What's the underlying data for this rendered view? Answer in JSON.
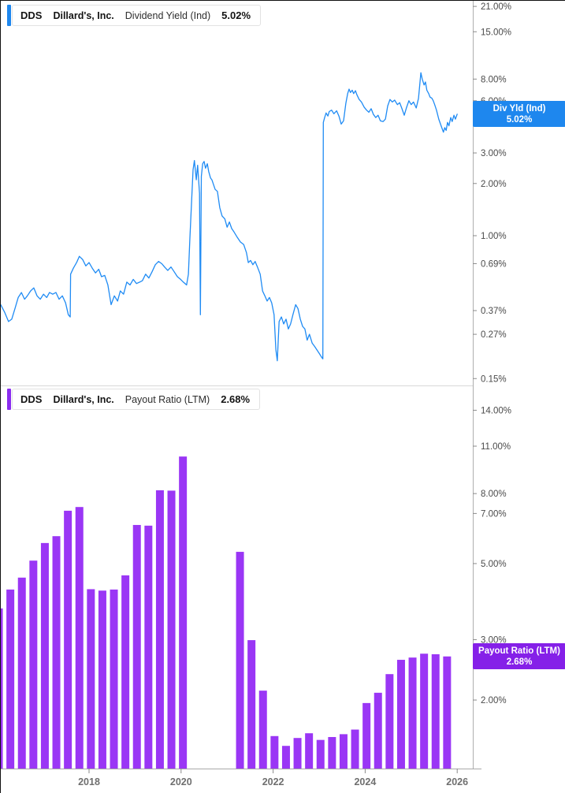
{
  "ui": {
    "colors": {
      "line_blue": "#1f8bf4",
      "bar_purple": "#9a36f5",
      "badge_blue": "#1e87ee",
      "badge_purple": "#8520e8",
      "accent_blue": "#1e87ee",
      "accent_purple": "#8b2df0"
    },
    "chips": [
      {
        "ticker": "DDS",
        "company": "Dillard's, Inc.",
        "metric": "Dividend Yield (Ind)",
        "value": "5.02%",
        "color": "#1e87ee"
      },
      {
        "ticker": "DDS",
        "company": "Dillard's, Inc.",
        "metric": "Payout Ratio (LTM)",
        "value": "2.68%",
        "color": "#8b2df0"
      }
    ],
    "badges": [
      {
        "label": "Div Yld (Ind)",
        "value": "5.02%",
        "color": "#1e87ee"
      },
      {
        "label": "Payout Ratio (LTM)",
        "value": "2.68%",
        "color": "#8520e8"
      }
    ]
  },
  "x_axis": {
    "ticks": [
      2018,
      2020,
      2022,
      2024,
      2026
    ]
  },
  "chart_data": [
    {
      "type": "line",
      "title": "DDS Dillard's, Inc. Dividend Yield (Ind)",
      "series_name": "Div Yld (Ind)",
      "unit": "%",
      "y_scale": "log",
      "last_value": 5.02,
      "y_ticks": [
        21,
        15,
        8,
        6,
        3,
        2,
        1,
        0.69,
        0.37,
        0.27,
        0.15
      ],
      "x_range": [
        2016.08,
        2026.34
      ],
      "legend_position": "top-left",
      "grid": false,
      "points": [
        [
          2016.08,
          0.4
        ],
        [
          2016.17,
          0.36
        ],
        [
          2016.25,
          0.32
        ],
        [
          2016.32,
          0.33
        ],
        [
          2016.39,
          0.38
        ],
        [
          2016.46,
          0.44
        ],
        [
          2016.53,
          0.47
        ],
        [
          2016.6,
          0.43
        ],
        [
          2016.66,
          0.45
        ],
        [
          2016.73,
          0.48
        ],
        [
          2016.8,
          0.5
        ],
        [
          2016.87,
          0.45
        ],
        [
          2016.94,
          0.43
        ],
        [
          2017.01,
          0.46
        ],
        [
          2017.08,
          0.44
        ],
        [
          2017.14,
          0.47
        ],
        [
          2017.21,
          0.46
        ],
        [
          2017.28,
          0.47
        ],
        [
          2017.35,
          0.43
        ],
        [
          2017.42,
          0.45
        ],
        [
          2017.49,
          0.41
        ],
        [
          2017.55,
          0.35
        ],
        [
          2017.59,
          0.34
        ],
        [
          2017.6,
          0.6
        ],
        [
          2017.66,
          0.65
        ],
        [
          2017.73,
          0.7
        ],
        [
          2017.79,
          0.76
        ],
        [
          2017.86,
          0.73
        ],
        [
          2017.93,
          0.67
        ],
        [
          2018.0,
          0.7
        ],
        [
          2018.07,
          0.65
        ],
        [
          2018.14,
          0.61
        ],
        [
          2018.21,
          0.64
        ],
        [
          2018.27,
          0.58
        ],
        [
          2018.34,
          0.59
        ],
        [
          2018.41,
          0.52
        ],
        [
          2018.48,
          0.4
        ],
        [
          2018.55,
          0.45
        ],
        [
          2018.62,
          0.42
        ],
        [
          2018.68,
          0.48
        ],
        [
          2018.75,
          0.46
        ],
        [
          2018.82,
          0.54
        ],
        [
          2018.89,
          0.52
        ],
        [
          2018.96,
          0.56
        ],
        [
          2019.03,
          0.53
        ],
        [
          2019.1,
          0.54
        ],
        [
          2019.16,
          0.55
        ],
        [
          2019.23,
          0.6
        ],
        [
          2019.3,
          0.57
        ],
        [
          2019.37,
          0.62
        ],
        [
          2019.44,
          0.68
        ],
        [
          2019.51,
          0.71
        ],
        [
          2019.58,
          0.69
        ],
        [
          2019.64,
          0.66
        ],
        [
          2019.71,
          0.63
        ],
        [
          2019.78,
          0.66
        ],
        [
          2019.85,
          0.62
        ],
        [
          2019.92,
          0.58
        ],
        [
          2019.99,
          0.56
        ],
        [
          2020.05,
          0.54
        ],
        [
          2020.12,
          0.52
        ],
        [
          2020.16,
          0.6
        ],
        [
          2020.19,
          0.95
        ],
        [
          2020.23,
          1.6
        ],
        [
          2020.26,
          2.4
        ],
        [
          2020.29,
          2.71
        ],
        [
          2020.33,
          2.1
        ],
        [
          2020.36,
          2.55
        ],
        [
          2020.4,
          1.75
        ],
        [
          2020.42,
          0.35
        ],
        [
          2020.44,
          2.2
        ],
        [
          2020.47,
          2.6
        ],
        [
          2020.5,
          2.68
        ],
        [
          2020.53,
          2.45
        ],
        [
          2020.57,
          2.6
        ],
        [
          2020.6,
          2.35
        ],
        [
          2020.64,
          2.15
        ],
        [
          2020.67,
          2.1
        ],
        [
          2020.71,
          1.95
        ],
        [
          2020.74,
          1.85
        ],
        [
          2020.79,
          1.8
        ],
        [
          2020.84,
          1.45
        ],
        [
          2020.89,
          1.3
        ],
        [
          2020.95,
          1.25
        ],
        [
          2021.0,
          1.12
        ],
        [
          2021.05,
          1.2
        ],
        [
          2021.1,
          1.1
        ],
        [
          2021.15,
          1.05
        ],
        [
          2021.22,
          0.98
        ],
        [
          2021.29,
          0.92
        ],
        [
          2021.36,
          0.89
        ],
        [
          2021.42,
          0.8
        ],
        [
          2021.46,
          0.7
        ],
        [
          2021.51,
          0.72
        ],
        [
          2021.56,
          0.68
        ],
        [
          2021.61,
          0.71
        ],
        [
          2021.66,
          0.66
        ],
        [
          2021.72,
          0.6
        ],
        [
          2021.77,
          0.48
        ],
        [
          2021.82,
          0.45
        ],
        [
          2021.87,
          0.42
        ],
        [
          2021.92,
          0.44
        ],
        [
          2021.97,
          0.41
        ],
        [
          2022.02,
          0.35
        ],
        [
          2022.06,
          0.22
        ],
        [
          2022.09,
          0.19
        ],
        [
          2022.13,
          0.32
        ],
        [
          2022.18,
          0.34
        ],
        [
          2022.23,
          0.31
        ],
        [
          2022.28,
          0.33
        ],
        [
          2022.33,
          0.29
        ],
        [
          2022.38,
          0.31
        ],
        [
          2022.43,
          0.35
        ],
        [
          2022.49,
          0.4
        ],
        [
          2022.54,
          0.38
        ],
        [
          2022.59,
          0.33
        ],
        [
          2022.64,
          0.3
        ],
        [
          2022.69,
          0.29
        ],
        [
          2022.74,
          0.25
        ],
        [
          2022.79,
          0.27
        ],
        [
          2022.85,
          0.24
        ],
        [
          2022.9,
          0.23
        ],
        [
          2022.95,
          0.22
        ],
        [
          2023.0,
          0.21
        ],
        [
          2023.05,
          0.2
        ],
        [
          2023.08,
          0.195
        ],
        [
          2023.09,
          4.5
        ],
        [
          2023.12,
          4.8
        ],
        [
          2023.15,
          5.1
        ],
        [
          2023.19,
          4.9
        ],
        [
          2023.22,
          5.2
        ],
        [
          2023.27,
          5.3
        ],
        [
          2023.32,
          5.05
        ],
        [
          2023.38,
          5.25
        ],
        [
          2023.43,
          4.9
        ],
        [
          2023.48,
          4.4
        ],
        [
          2023.53,
          4.6
        ],
        [
          2023.58,
          5.8
        ],
        [
          2023.62,
          6.6
        ],
        [
          2023.65,
          7.0
        ],
        [
          2023.68,
          6.7
        ],
        [
          2023.72,
          6.9
        ],
        [
          2023.75,
          6.6
        ],
        [
          2023.79,
          6.85
        ],
        [
          2023.82,
          6.5
        ],
        [
          2023.87,
          6.1
        ],
        [
          2023.92,
          5.9
        ],
        [
          2023.98,
          5.5
        ],
        [
          2024.03,
          5.3
        ],
        [
          2024.08,
          5.15
        ],
        [
          2024.13,
          5.4
        ],
        [
          2024.18,
          5.0
        ],
        [
          2024.23,
          4.8
        ],
        [
          2024.28,
          4.95
        ],
        [
          2024.33,
          4.6
        ],
        [
          2024.39,
          4.55
        ],
        [
          2024.44,
          4.7
        ],
        [
          2024.49,
          5.6
        ],
        [
          2024.54,
          6.1
        ],
        [
          2024.59,
          5.9
        ],
        [
          2024.64,
          6.05
        ],
        [
          2024.7,
          5.7
        ],
        [
          2024.75,
          5.85
        ],
        [
          2024.8,
          5.4
        ],
        [
          2024.85,
          4.95
        ],
        [
          2024.9,
          5.5
        ],
        [
          2024.95,
          6.0
        ],
        [
          2025.0,
          5.7
        ],
        [
          2025.05,
          5.9
        ],
        [
          2025.11,
          5.45
        ],
        [
          2025.16,
          6.2
        ],
        [
          2025.19,
          7.6
        ],
        [
          2025.21,
          8.7
        ],
        [
          2025.24,
          8.0
        ],
        [
          2025.28,
          7.4
        ],
        [
          2025.31,
          7.7
        ],
        [
          2025.34,
          6.9
        ],
        [
          2025.38,
          6.6
        ],
        [
          2025.41,
          6.3
        ],
        [
          2025.45,
          6.2
        ],
        [
          2025.48,
          6.0
        ],
        [
          2025.51,
          5.7
        ],
        [
          2025.55,
          5.3
        ],
        [
          2025.6,
          4.7
        ],
        [
          2025.65,
          4.3
        ],
        [
          2025.7,
          3.95
        ],
        [
          2025.73,
          4.2
        ],
        [
          2025.76,
          4.05
        ],
        [
          2025.79,
          4.5
        ],
        [
          2025.82,
          4.3
        ],
        [
          2025.86,
          4.8
        ],
        [
          2025.89,
          4.55
        ],
        [
          2025.93,
          4.95
        ],
        [
          2025.96,
          4.7
        ],
        [
          2026.0,
          5.02
        ]
      ]
    },
    {
      "type": "bar",
      "title": "DDS Dillard's, Inc. Payout Ratio (LTM)",
      "series_name": "Payout Ratio (LTM)",
      "unit": "%",
      "y_scale": "log",
      "last_value": 2.68,
      "y_ticks": [
        14,
        11,
        8,
        7,
        5,
        3,
        2
      ],
      "legend_position": "top-left",
      "grid": false,
      "bars": [
        [
          2016.04,
          3.7
        ],
        [
          2016.29,
          4.2
        ],
        [
          2016.54,
          4.55
        ],
        [
          2016.79,
          5.1
        ],
        [
          2017.04,
          5.74
        ],
        [
          2017.29,
          6.01
        ],
        [
          2017.54,
          7.13
        ],
        [
          2017.79,
          7.31
        ],
        [
          2018.04,
          4.21
        ],
        [
          2018.29,
          4.17
        ],
        [
          2018.54,
          4.2
        ],
        [
          2018.79,
          4.62
        ],
        [
          2019.04,
          6.48
        ],
        [
          2019.29,
          6.45
        ],
        [
          2019.54,
          8.18
        ],
        [
          2019.79,
          8.16
        ],
        [
          2020.04,
          10.26
        ],
        [
          2021.28,
          5.41
        ],
        [
          2021.53,
          2.99
        ],
        [
          2021.78,
          2.13
        ],
        [
          2022.03,
          1.57
        ],
        [
          2022.28,
          1.47
        ],
        [
          2022.53,
          1.55
        ],
        [
          2022.78,
          1.6
        ],
        [
          2023.03,
          1.53
        ],
        [
          2023.28,
          1.56
        ],
        [
          2023.53,
          1.59
        ],
        [
          2023.78,
          1.64
        ],
        [
          2024.03,
          1.96
        ],
        [
          2024.28,
          2.1
        ],
        [
          2024.53,
          2.38
        ],
        [
          2024.78,
          2.62
        ],
        [
          2025.03,
          2.66
        ],
        [
          2025.28,
          2.73
        ],
        [
          2025.53,
          2.72
        ],
        [
          2025.78,
          2.68
        ]
      ]
    }
  ]
}
